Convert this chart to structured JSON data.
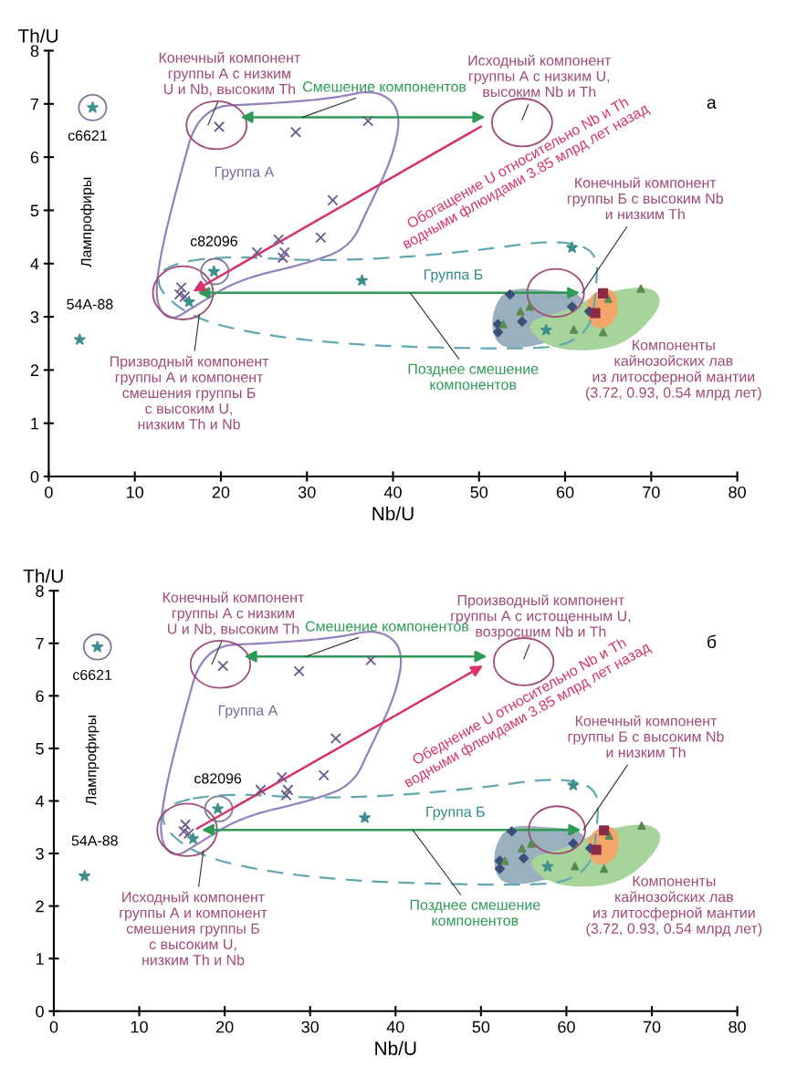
{
  "chart_data": [
    {
      "type": "scatter",
      "xlabel": "Nb/U",
      "ylabel": "Th/U",
      "xlim": [
        0,
        80
      ],
      "ylim": [
        0,
        8
      ],
      "xticks": [
        0,
        10,
        20,
        30,
        40,
        50,
        60,
        70,
        80
      ],
      "yticks": [
        0,
        1,
        2,
        3,
        4,
        5,
        6,
        7,
        8
      ],
      "series": [
        {
          "color": "#6a5a8a",
          "marker": "cross",
          "x": [
            19.8,
            28.7,
            37.1,
            33.0,
            31.6,
            26.7,
            27.4,
            27.2,
            24.2,
            15.4,
            15.2,
            15.8
          ],
          "values": [
            6.57,
            6.47,
            6.68,
            5.19,
            4.49,
            4.45,
            4.21,
            4.11,
            4.21,
            3.55,
            3.42,
            3.38
          ]
        },
        {
          "color": "#3f8f8f",
          "marker": "star",
          "x": [
            5.1,
            19.2,
            3.6,
            16.3,
            36.4,
            60.8,
            57.8
          ],
          "values": [
            6.93,
            3.85,
            2.57,
            3.28,
            3.68,
            4.3,
            2.75
          ]
        },
        {
          "color": "#3a4f7a",
          "marker": "diamond",
          "x": [
            53.6,
            60.8,
            55.0,
            52.2,
            52.2,
            62.8
          ],
          "values": [
            3.42,
            3.19,
            2.91,
            2.86,
            2.71,
            3.1
          ]
        },
        {
          "color": "#5a8a50",
          "marker": "triangle",
          "x": [
            54.8,
            55.9,
            52.8,
            61.0,
            64.4,
            68.8,
            65.0
          ],
          "values": [
            3.1,
            3.19,
            2.86,
            2.76,
            2.71,
            3.53,
            3.34
          ]
        },
        {
          "color": "#8a2a4a",
          "marker": "square",
          "x": [
            64.4,
            63.5
          ],
          "values": [
            3.44,
            3.07
          ]
        }
      ],
      "annotations": [
        "Конечный компонент\nгруппы А с низким\nU и Nb, высоким Th",
        "Смешение компонентов",
        "Исходный компонент\nгруппы А с низким U,\nвысоким Nb и Th",
        "а",
        {
          "text": "c6621",
          "x": 5.1,
          "y": 6.93
        },
        {
          "text": "c82096",
          "x": 19.2,
          "y": 3.85
        },
        {
          "text": "54A-88",
          "x": 3.6,
          "y": 2.57
        },
        "Лампрофиры",
        "Группа А",
        "Обогащение U относительно Nb и Th\nводными флюидами 3.85 млрд лет назад",
        "Конечный компонент\nгруппы Б с высоким Nb\nи низким Th",
        "Группа Б",
        "Призводный компонент\nгруппы А и компонент\nсмешения группы Б\nс высоким U,\nнизким Th и Nb",
        "Позднее смешение\nкомпонентов",
        "Компоненты\nкайнозойских лав\nиз литосферной мантии\n(3.72, 0.93, 0.54 млрд лет)"
      ]
    },
    {
      "type": "scatter",
      "xlabel": "Nb/U",
      "ylabel": "Th/U",
      "xlim": [
        0,
        80
      ],
      "ylim": [
        0,
        8
      ],
      "xticks": [
        0,
        10,
        20,
        30,
        40,
        50,
        60,
        70,
        80
      ],
      "yticks": [
        0,
        1,
        2,
        3,
        4,
        5,
        6,
        7,
        8
      ],
      "series": [
        {
          "color": "#6a5a8a",
          "marker": "cross",
          "x": [
            19.8,
            28.7,
            37.1,
            33.0,
            31.6,
            26.7,
            27.4,
            27.2,
            24.2,
            15.4,
            15.2,
            15.8
          ],
          "values": [
            6.57,
            6.47,
            6.68,
            5.19,
            4.49,
            4.45,
            4.21,
            4.11,
            4.21,
            3.55,
            3.42,
            3.38
          ]
        },
        {
          "color": "#3f8f8f",
          "marker": "star",
          "x": [
            5.1,
            19.2,
            3.6,
            16.3,
            36.4,
            60.8,
            57.8
          ],
          "values": [
            6.93,
            3.85,
            2.57,
            3.28,
            3.68,
            4.3,
            2.75
          ]
        },
        {
          "color": "#3a4f7a",
          "marker": "diamond",
          "x": [
            53.6,
            60.8,
            55.0,
            52.2,
            52.2,
            62.8
          ],
          "values": [
            3.42,
            3.19,
            2.91,
            2.86,
            2.71,
            3.1
          ]
        },
        {
          "color": "#5a8a50",
          "marker": "triangle",
          "x": [
            54.8,
            55.9,
            52.8,
            61.0,
            64.4,
            68.8,
            65.0
          ],
          "values": [
            3.1,
            3.19,
            2.86,
            2.76,
            2.71,
            3.53,
            3.34
          ]
        },
        {
          "color": "#8a2a4a",
          "marker": "square",
          "x": [
            64.4,
            63.5
          ],
          "values": [
            3.44,
            3.07
          ]
        }
      ],
      "annotations": [
        "Конечный компонент\nгруппы А с низким\nU и Nb, высоким Th",
        "Смешение компонентов",
        "Производный компонент\nгруппы А с истощенным U,\nвозросшим Nb и Th",
        "б",
        {
          "text": "c6621",
          "x": 5.1,
          "y": 6.93
        },
        {
          "text": "c82096",
          "x": 19.2,
          "y": 3.85
        },
        {
          "text": "54A-88",
          "x": 3.6,
          "y": 2.57
        },
        "Лампрофиры",
        "Группа А",
        "Обеднение U относительно Nb и Th\nводными флюидами 3.85 млрд лет назад",
        "Конечный компонент\nгруппы Б с высоким Nb\nи низким Th",
        "Группа Б",
        "Исходный компонент\nгруппы А и компонент\nсмешения группы Б\nс высоким U,\nнизким Th и Nb",
        "Позднее смешение\nкомпонентов",
        "Компоненты\nкайнозойских лав\nиз литосферной мантии\n(3.72, 0.93, 0.54 млрд лет)"
      ]
    }
  ]
}
